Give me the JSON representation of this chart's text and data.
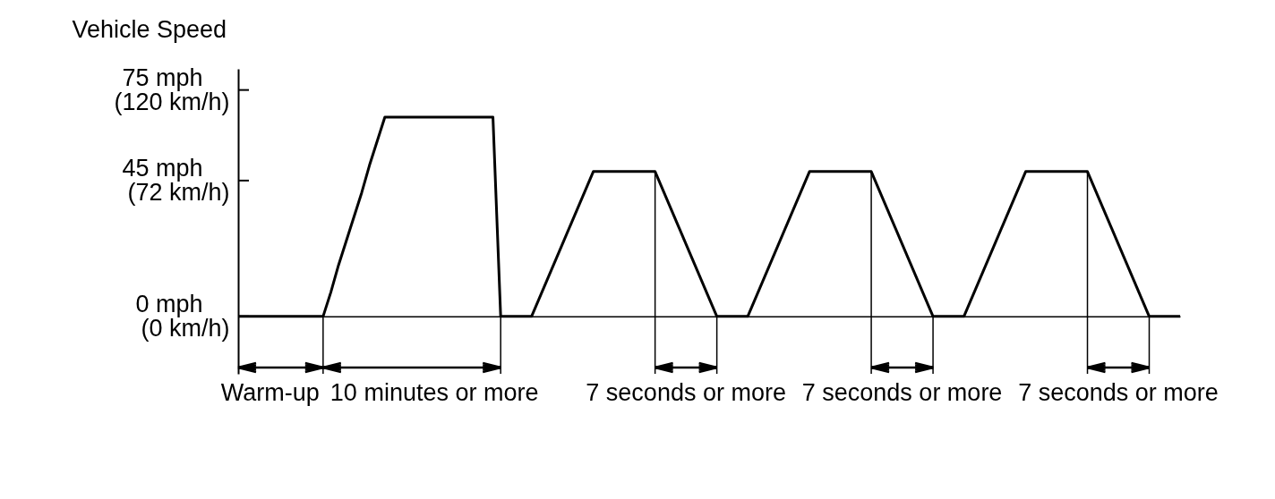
{
  "chart_data": {
    "type": "line",
    "ylabel": "Vehicle Speed",
    "categories": [
      null,
      null,
      null,
      null,
      null,
      null,
      null,
      null,
      null,
      null,
      null,
      null,
      null,
      null,
      null,
      null,
      null,
      null,
      null,
      null,
      null,
      null,
      null,
      null,
      null,
      null,
      null,
      null,
      null,
      null,
      null,
      null,
      null,
      null,
      null,
      null,
      null,
      null,
      null,
      null,
      null,
      null,
      null,
      null,
      null,
      null,
      null,
      null,
      null,
      null,
      null,
      null,
      null,
      null,
      null,
      null,
      null,
      null,
      null,
      null,
      null,
      null,
      null,
      null,
      null,
      null,
      null,
      null,
      null,
      null,
      null,
      null,
      null,
      null,
      null,
      null,
      null,
      null,
      null,
      null,
      null,
      null,
      null,
      null,
      null,
      null,
      null,
      null,
      null,
      null,
      null,
      null,
      null,
      null,
      null,
      null,
      null,
      null,
      null,
      null,
      null,
      null,
      null,
      null,
      null,
      null,
      null,
      null,
      null,
      null,
      null,
      null,
      null,
      null,
      null,
      null,
      null,
      null,
      null,
      null,
      null,
      null,
      null
    ],
    "series": [
      {
        "color": "#000000",
        "values": [
          0,
          0,
          0,
          0,
          0,
          0,
          0,
          0,
          0,
          0,
          0,
          0,
          8,
          17,
          25,
          33,
          41,
          50,
          58,
          66,
          66,
          66,
          66,
          66,
          66,
          66,
          66,
          66,
          66,
          66,
          66,
          66,
          66,
          66,
          0,
          0,
          0,
          0,
          0,
          6,
          12,
          18,
          24,
          30,
          36,
          42,
          48,
          48,
          48,
          48,
          48,
          48,
          48,
          48,
          48,
          42,
          36,
          30,
          24,
          18,
          12,
          6,
          0,
          0,
          0,
          0,
          0,
          6,
          12,
          18,
          24,
          30,
          36,
          42,
          48,
          48,
          48,
          48,
          48,
          48,
          48,
          48,
          48,
          42,
          36,
          30,
          24,
          18,
          12,
          6,
          0,
          0,
          0,
          0,
          0,
          6,
          12,
          18,
          24,
          30,
          36,
          42,
          48,
          48,
          48,
          48,
          48,
          48,
          48,
          48,
          48,
          42,
          36,
          30,
          24,
          18,
          12,
          6,
          0,
          0,
          0,
          0,
          0
        ]
      }
    ],
    "ylim": [
      -19,
      82
    ],
    "yticks": [
      {
        "value": 75,
        "label": "75 mph"
      },
      {
        "value": 45,
        "label": "45 mph"
      },
      {
        "value": 0,
        "label": "0 mph"
      }
    ],
    "y2lim": [
      -30.4,
      131.2
    ],
    "y2ticks": [
      {
        "value": 120,
        "label": "(120 km/h)"
      },
      {
        "value": 72,
        "label": "(72 km/h)"
      },
      {
        "value": 0,
        "label": "(0 km/h)"
      }
    ],
    "tick_labels": "y",
    "annotations": [
      "Warm-up",
      "10 minutes or more",
      "7 seconds or more",
      "7 seconds or more",
      "7 seconds or more"
    ]
  }
}
